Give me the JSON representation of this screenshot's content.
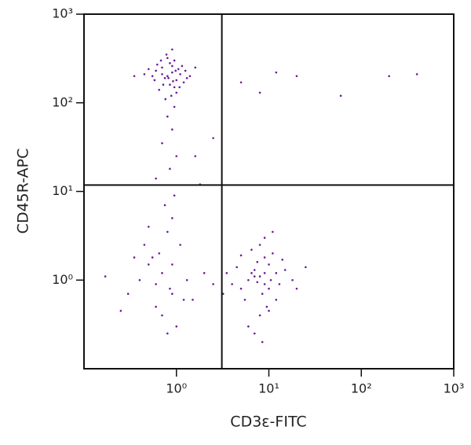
{
  "chart_data": {
    "type": "scatter",
    "xlabel": "CD3ε-FITC",
    "ylabel": "CD45R-APC",
    "log_x": true,
    "log_y": true,
    "xlim": [
      0.1,
      1000
    ],
    "ylim": [
      0.1,
      1000
    ],
    "xticks": [
      {
        "value": 1,
        "label": "10⁰"
      },
      {
        "value": 10,
        "label": "10¹"
      },
      {
        "value": 100,
        "label": "10²"
      },
      {
        "value": 1000,
        "label": "10³"
      }
    ],
    "yticks": [
      {
        "value": 1,
        "label": "10⁰"
      },
      {
        "value": 10,
        "label": "10¹"
      },
      {
        "value": 100,
        "label": "10²"
      },
      {
        "value": 1000,
        "label": "10³"
      }
    ],
    "quadrant_x": 3.1,
    "quadrant_y": 11.8,
    "color": "#6a1b9a",
    "x": [
      0.8,
      0.9,
      1.0,
      0.7,
      0.85,
      0.95,
      1.1,
      0.75,
      0.6,
      1.2,
      0.65,
      0.9,
      1.05,
      0.8,
      0.7,
      0.95,
      1.3,
      0.55,
      0.85,
      1.0,
      0.78,
      0.92,
      1.15,
      0.68,
      0.88,
      0.5,
      1.4,
      0.72,
      0.98,
      0.82,
      0.62,
      1.08,
      0.9,
      0.76,
      1.25,
      0.58,
      0.45,
      1.6,
      0.35,
      0.95,
      0.8,
      0.9,
      0.7,
      1.0,
      0.85,
      0.6,
      0.95,
      0.75,
      0.9,
      0.5,
      0.8,
      1.1,
      0.65,
      0.55,
      0.9,
      0.7,
      0.4,
      0.85,
      1.2,
      0.6,
      0.3,
      0.5,
      0.7,
      1.0,
      1.3,
      0.45,
      0.6,
      0.8,
      1.5,
      2.0,
      0.35,
      0.9,
      2.5,
      0.25,
      0.17,
      8,
      7,
      9,
      10,
      6,
      12,
      5,
      8.5,
      11,
      7.5,
      9.5,
      4.5,
      13,
      6.5,
      10.5,
      8,
      15,
      5.5,
      9,
      7,
      3.5,
      18,
      12,
      6,
      8,
      10,
      4,
      14,
      7,
      9,
      11,
      5,
      20,
      6.5,
      8.5,
      25,
      3.2,
      10,
      9,
      7.5,
      200,
      400,
      60,
      20,
      8,
      12,
      1.6,
      2.5,
      5,
      1.8
    ],
    "values": [
      200,
      220,
      180,
      250,
      160,
      300,
      210,
      190,
      230,
      170,
      140,
      260,
      240,
      320,
      210,
      150,
      190,
      200,
      280,
      130,
      350,
      175,
      260,
      300,
      120,
      240,
      200,
      160,
      230,
      190,
      270,
      150,
      400,
      110,
      230,
      180,
      210,
      250,
      200,
      90,
      70,
      50,
      35,
      25,
      18,
      14,
      9,
      7,
      5,
      4,
      3.5,
      2.5,
      2,
      1.8,
      1.5,
      1.2,
      1,
      0.8,
      0.6,
      0.5,
      0.7,
      1.5,
      0.4,
      0.3,
      1.0,
      2.5,
      0.9,
      0.25,
      0.6,
      1.2,
      1.8,
      0.7,
      0.9,
      0.45,
      1.1,
      1.1,
      1.3,
      0.9,
      1.5,
      1.0,
      1.2,
      0.8,
      0.7,
      2.0,
      1.6,
      0.5,
      1.4,
      0.9,
      2.2,
      1.0,
      0.4,
      1.3,
      0.6,
      3.0,
      1.1,
      1.2,
      1.0,
      0.6,
      0.3,
      2.5,
      0.8,
      0.9,
      1.7,
      0.25,
      1.8,
      3.5,
      1.9,
      0.8,
      1.2,
      0.2,
      1.4,
      0.7,
      0.45,
      1.2,
      0.95,
      200,
      210,
      120,
      200,
      130,
      220,
      25,
      40,
      170,
      12
    ]
  }
}
